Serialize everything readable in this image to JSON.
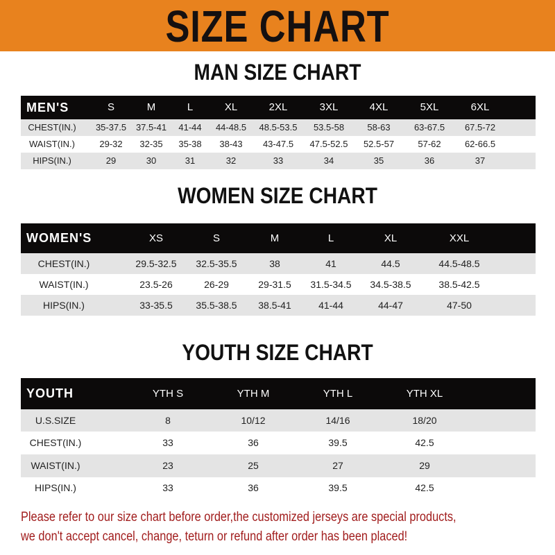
{
  "title": "SIZE CHART",
  "colors": {
    "banner": "#e8821e",
    "header_row": "#0c0a0a",
    "stripe": "#e4e4e4",
    "note": "#a11d1d"
  },
  "tables": [
    {
      "title": "MAN SIZE CHART",
      "header_label": "MEN'S",
      "sizes": [
        "S",
        "M",
        "L",
        "XL",
        "2XL",
        "3XL",
        "4XL",
        "5XL",
        "6XL"
      ],
      "rows": [
        {
          "label": "CHEST(IN.)",
          "values": [
            "35-37.5",
            "37.5-41",
            "41-44",
            "44-48.5",
            "48.5-53.5",
            "53.5-58",
            "58-63",
            "63-67.5",
            "67.5-72"
          ]
        },
        {
          "label": "WAIST(IN.)",
          "values": [
            "29-32",
            "32-35",
            "35-38",
            "38-43",
            "43-47.5",
            "47.5-52.5",
            "52.5-57",
            "57-62",
            "62-66.5"
          ]
        },
        {
          "label": "HIPS(IN.)",
          "values": [
            "29",
            "30",
            "31",
            "32",
            "33",
            "34",
            "35",
            "36",
            "37"
          ]
        }
      ]
    },
    {
      "title": "WOMEN SIZE CHART",
      "header_label": "WOMEN'S",
      "sizes": [
        "XS",
        "S",
        "M",
        "L",
        "XL",
        "XXL"
      ],
      "rows": [
        {
          "label": "CHEST(IN.)",
          "values": [
            "29.5-32.5",
            "32.5-35.5",
            "38",
            "41",
            "44.5",
            "44.5-48.5"
          ]
        },
        {
          "label": "WAIST(IN.)",
          "values": [
            "23.5-26",
            "26-29",
            "29-31.5",
            "31.5-34.5",
            "34.5-38.5",
            "38.5-42.5"
          ]
        },
        {
          "label": "HIPS(IN.)",
          "values": [
            "33-35.5",
            "35.5-38.5",
            "38.5-41",
            "41-44",
            "44-47",
            "47-50"
          ]
        }
      ]
    },
    {
      "title": "YOUTH SIZE CHART",
      "header_label": "YOUTH",
      "sizes": [
        "YTH S",
        "YTH M",
        "YTH L",
        "YTH XL"
      ],
      "rows": [
        {
          "label": "U.S.SIZE",
          "values": [
            "8",
            "10/12",
            "14/16",
            "18/20"
          ]
        },
        {
          "label": "CHEST(IN.)",
          "values": [
            "33",
            "36",
            "39.5",
            "42.5"
          ]
        },
        {
          "label": "WAIST(IN.)",
          "values": [
            "23",
            "25",
            "27",
            "29"
          ]
        },
        {
          "label": "HIPS(IN.)",
          "values": [
            "33",
            "36",
            "39.5",
            "42.5"
          ]
        }
      ]
    }
  ],
  "note": {
    "line1": "Please refer to our size chart before order,the customized jerseys are special products,",
    "line2": "we don't accept cancel, change, teturn or refund after order has been placed!"
  }
}
